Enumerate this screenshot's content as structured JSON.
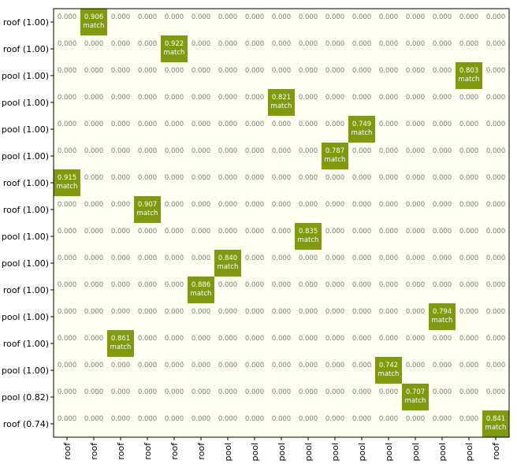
{
  "chart_data": {
    "type": "heatmap",
    "row_labels": [
      "roof (1.00)",
      "roof (1.00)",
      "pool (1.00)",
      "pool (1.00)",
      "pool (1.00)",
      "pool (1.00)",
      "roof (1.00)",
      "roof (1.00)",
      "pool (1.00)",
      "pool (1.00)",
      "roof (1.00)",
      "pool (1.00)",
      "roof (1.00)",
      "pool (1.00)",
      "pool (0.82)",
      "roof (0.74)"
    ],
    "col_labels": [
      "roof",
      "roof",
      "roof",
      "roof",
      "roof",
      "roof",
      "pool",
      "pool",
      "pool",
      "pool",
      "pool",
      "pool",
      "pool",
      "pool",
      "pool",
      "pool",
      "roof"
    ],
    "default_value": "0.000",
    "matches": [
      {
        "row": 0,
        "col": 1,
        "value": 0.906
      },
      {
        "row": 1,
        "col": 4,
        "value": 0.922
      },
      {
        "row": 2,
        "col": 15,
        "value": 0.803
      },
      {
        "row": 3,
        "col": 8,
        "value": 0.821
      },
      {
        "row": 4,
        "col": 11,
        "value": 0.749
      },
      {
        "row": 5,
        "col": 10,
        "value": 0.787
      },
      {
        "row": 6,
        "col": 0,
        "value": 0.915
      },
      {
        "row": 7,
        "col": 3,
        "value": 0.907
      },
      {
        "row": 8,
        "col": 9,
        "value": 0.835
      },
      {
        "row": 9,
        "col": 6,
        "value": 0.84
      },
      {
        "row": 10,
        "col": 5,
        "value": 0.886
      },
      {
        "row": 11,
        "col": 14,
        "value": 0.794
      },
      {
        "row": 12,
        "col": 2,
        "value": 0.861
      },
      {
        "row": 13,
        "col": 12,
        "value": 0.742
      },
      {
        "row": 14,
        "col": 13,
        "value": 0.707
      },
      {
        "row": 15,
        "col": 16,
        "value": 0.841
      }
    ],
    "match_label": "match",
    "colors": {
      "background": "#fdfff0",
      "match_cell": "#7f9a0a",
      "zero_text": "#7a7a7a",
      "match_text": "#ffffff",
      "axes": "#000000"
    }
  }
}
